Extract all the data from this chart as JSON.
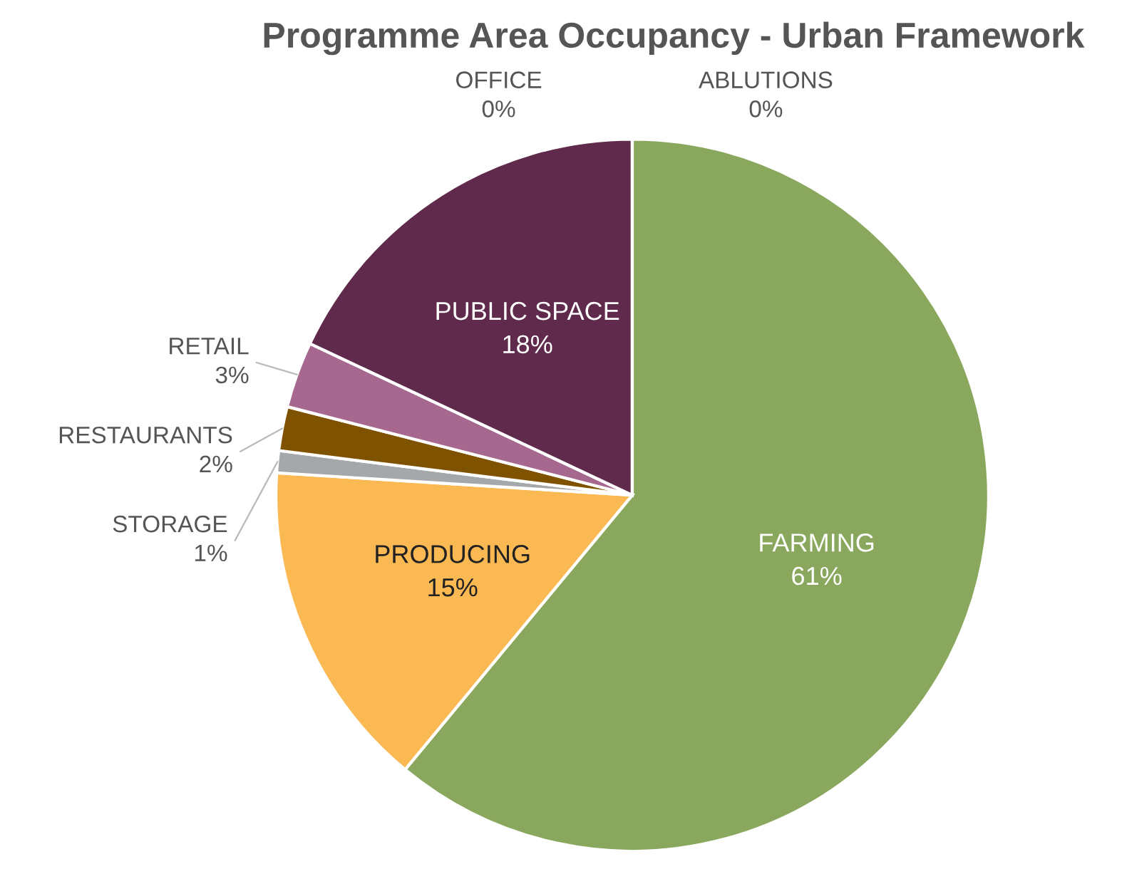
{
  "chart_data": {
    "type": "pie",
    "title": "Programme Area Occupancy - Urban Framework",
    "categories": [
      "FARMING",
      "PRODUCING",
      "STORAGE",
      "RESTAURANTS",
      "RETAIL",
      "PUBLIC SPACE",
      "OFFICE",
      "ABLUTIONS"
    ],
    "values": [
      61,
      15,
      1,
      2,
      3,
      18,
      0,
      0
    ],
    "value_labels": [
      "61%",
      "15%",
      "1%",
      "2%",
      "3%",
      "18%",
      "0%",
      "0%"
    ],
    "colors": [
      "#8aa75e",
      "#fbb954",
      "#a5a8ab",
      "#7f5200",
      "#a6688f",
      "#5f2a4b",
      "#8b2a1a",
      "#c0504d"
    ]
  }
}
